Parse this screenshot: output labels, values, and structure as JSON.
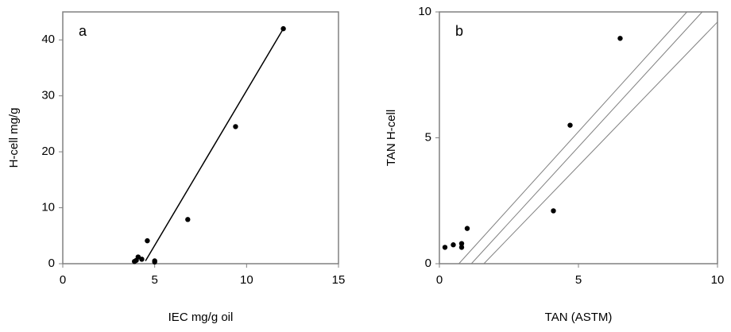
{
  "chart_data": [
    {
      "type": "scatter",
      "label": "a",
      "xlabel": "IEC mg/g oil",
      "ylabel": "H-cell mg/g",
      "xlim": [
        0,
        15
      ],
      "ylim": [
        0,
        45
      ],
      "xticks": [
        0,
        5,
        10,
        15
      ],
      "yticks": [
        0,
        10,
        20,
        30,
        40
      ],
      "x": [
        3.9,
        4.0,
        4.1,
        4.3,
        4.6,
        5.0,
        5.0,
        6.8,
        9.4,
        12.0
      ],
      "y": [
        0.4,
        0.6,
        1.2,
        0.8,
        4.1,
        0.5,
        0.3,
        7.9,
        24.5,
        42.0
      ],
      "color": "#000000",
      "lines": [
        {
          "x": [
            4.5,
            12.0
          ],
          "y": [
            0.5,
            42.0
          ]
        }
      ]
    },
    {
      "type": "scatter",
      "label": "b",
      "xlabel": "TAN (ASTM)",
      "ylabel": "TAN H-cell",
      "xlim": [
        0,
        10
      ],
      "ylim": [
        0,
        10
      ],
      "xticks": [
        0,
        5,
        10
      ],
      "yticks": [
        0,
        5,
        10
      ],
      "x": [
        0.2,
        0.5,
        0.8,
        0.8,
        1.0,
        4.1,
        4.7,
        6.5
      ],
      "y": [
        0.65,
        0.75,
        0.8,
        0.65,
        1.4,
        2.1,
        5.5,
        8.95
      ],
      "color": "#000000",
      "lines": [
        {
          "x": [
            0.7,
            8.9
          ],
          "y": [
            0,
            10
          ]
        },
        {
          "x": [
            1.15,
            9.45
          ],
          "y": [
            0,
            10
          ]
        },
        {
          "x": [
            1.6,
            10
          ],
          "y": [
            0,
            9.6
          ]
        }
      ]
    }
  ]
}
